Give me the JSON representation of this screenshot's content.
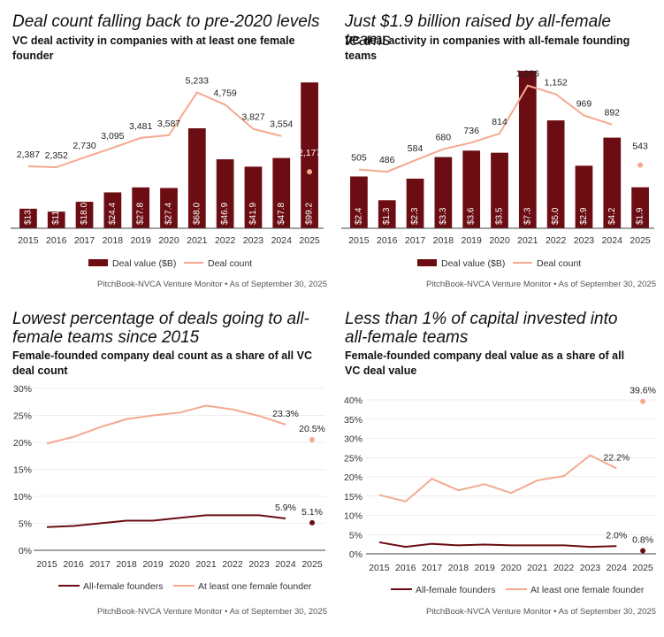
{
  "colors": {
    "dark": "#6b0d12",
    "light": "#f4a98f",
    "axis": "#444444",
    "grid": "#dddddd"
  },
  "source": "PitchBook-NVCA Venture Monitor • As of September 30, 2025",
  "chart_data": [
    {
      "type": "bar",
      "title": "Deal count falling back to pre-2020 levels",
      "subtitle": "VC deal activity in companies with at least one female founder",
      "categories": [
        "2015",
        "2016",
        "2017",
        "2018",
        "2019",
        "2020",
        "2021",
        "2022",
        "2023",
        "2024",
        "2025"
      ],
      "series": [
        {
          "name": "Deal value ($B)",
          "kind": "bar",
          "values": [
            13.3,
            11.3,
            18.0,
            24.4,
            27.8,
            27.4,
            68.0,
            46.9,
            41.9,
            47.8,
            99.2
          ],
          "labels": [
            "$13.3",
            "$11.3",
            "$18.0",
            "$24.4",
            "$27.8",
            "$27.4",
            "$68.0",
            "$46.9",
            "$41.9",
            "$47.8",
            "$99.2"
          ]
        },
        {
          "name": "Deal count",
          "kind": "line",
          "values": [
            2387,
            2352,
            2730,
            3095,
            3481,
            3587,
            5233,
            4759,
            3827,
            3554,
            2177
          ],
          "labels": [
            "2,387",
            "2,352",
            "2,730",
            "3,095",
            "3,481",
            "3,587",
            "5,233",
            "4,759",
            "3,827",
            "3,554",
            "2,177"
          ]
        }
      ],
      "ylim_bars": [
        0,
        130
      ],
      "ylim_line": [
        0,
        6000
      ],
      "legend": "bottom",
      "last_point_separate": true
    },
    {
      "type": "bar",
      "title": "Just $1.9 billion raised by all-female teams",
      "subtitle": "VC deal activity in companies with all-female founding teams",
      "categories": [
        "2015",
        "2016",
        "2017",
        "2018",
        "2019",
        "2020",
        "2021",
        "2022",
        "2023",
        "2024",
        "2025"
      ],
      "series": [
        {
          "name": "Deal value ($B)",
          "kind": "bar",
          "values": [
            2.4,
            1.3,
            2.3,
            3.3,
            3.6,
            3.5,
            7.3,
            5.0,
            2.9,
            4.2,
            1.9
          ],
          "labels": [
            "$2.4",
            "$1.3",
            "$2.3",
            "$3.3",
            "$3.6",
            "$3.5",
            "$7.3",
            "$5.0",
            "$2.9",
            "$4.2",
            "$1.9"
          ]
        },
        {
          "name": "Deal count",
          "kind": "line",
          "values": [
            505,
            486,
            584,
            680,
            736,
            814,
            1226,
            1152,
            969,
            892,
            543
          ],
          "labels": [
            "505",
            "486",
            "584",
            "680",
            "736",
            "814",
            "1,226",
            "1,152",
            "969",
            "892",
            "543"
          ]
        }
      ],
      "ylim_bars": [
        0,
        7.3
      ],
      "ylim_line": [
        0,
        1300
      ],
      "legend": "bottom",
      "last_point_separate": true
    },
    {
      "type": "line",
      "title": "Lowest percentage of deals going to all-female teams since 2015",
      "subtitle": "Female-founded company deal count as a share of all VC deal count",
      "x": [
        "2015",
        "2016",
        "2017",
        "2018",
        "2019",
        "2020",
        "2021",
        "2022",
        "2023",
        "2024",
        "2025"
      ],
      "y_ticks": [
        "30%",
        "25%",
        "20%",
        "15%",
        "10%",
        "5%",
        "0%"
      ],
      "ylim": [
        0,
        30
      ],
      "series": [
        {
          "name": "All-female founders",
          "color": "dark",
          "values": [
            4.3,
            4.5,
            5.0,
            5.5,
            5.5,
            6.0,
            6.5,
            6.5,
            6.5,
            5.9,
            5.1
          ],
          "end_label": "5.9%",
          "last_label": "5.1%"
        },
        {
          "name": "At least one female founder",
          "color": "light",
          "values": [
            19.8,
            21.0,
            22.8,
            24.3,
            25.0,
            25.5,
            26.8,
            26.1,
            24.9,
            23.3,
            20.5
          ],
          "end_label": "23.3%",
          "last_label": "20.5%"
        }
      ],
      "legend": "bottom",
      "last_point_separate": true
    },
    {
      "type": "line",
      "title": "Less than 1% of capital invested into all-female teams",
      "subtitle": "Female-founded company deal value as a share of all VC deal value",
      "x": [
        "2015",
        "2016",
        "2017",
        "2018",
        "2019",
        "2020",
        "2021",
        "2022",
        "2023",
        "2024",
        "2025"
      ],
      "y_ticks": [
        "40%",
        "35%",
        "30%",
        "25%",
        "20%",
        "15%",
        "10%",
        "5%",
        "0%"
      ],
      "ylim": [
        0,
        40
      ],
      "series": [
        {
          "name": "All-female founders",
          "color": "dark",
          "values": [
            3.0,
            1.8,
            2.6,
            2.2,
            2.4,
            2.2,
            2.2,
            2.2,
            1.8,
            2.0,
            0.8
          ],
          "end_label": "2.0%",
          "last_label": "0.8%"
        },
        {
          "name": "At least one female founder",
          "color": "light",
          "values": [
            15.3,
            13.6,
            19.5,
            16.5,
            18.1,
            15.8,
            19.1,
            20.2,
            25.6,
            22.2,
            39.6
          ],
          "end_label": "22.2%",
          "last_label": "39.6%"
        }
      ],
      "legend": "bottom",
      "last_point_separate": true
    }
  ]
}
